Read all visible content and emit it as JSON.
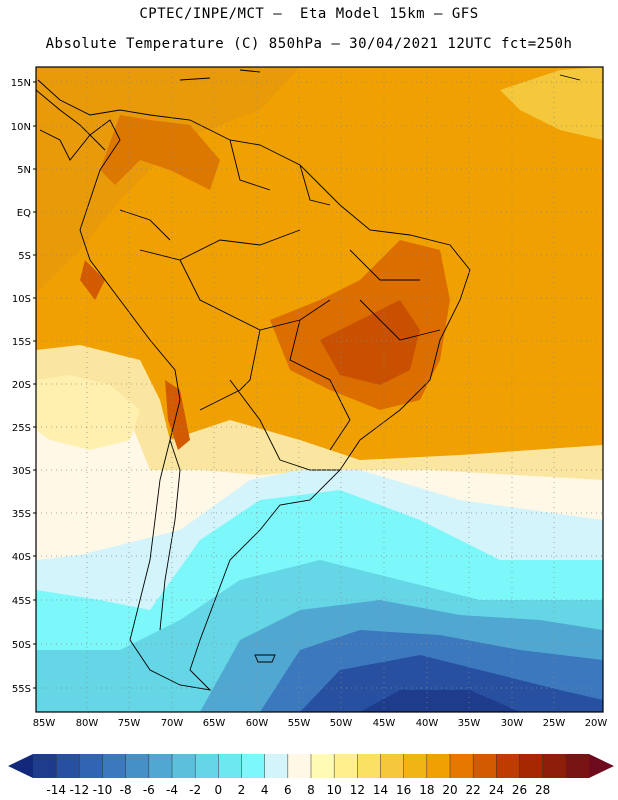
{
  "header": {
    "line1": "CPTEC/INPE/MCT –  Eta Model 15km – GFS",
    "line2": "Absolute Temperature (C) 850hPa – 30/04/2021 12UTC fct=250h"
  },
  "map": {
    "lat_labels": [
      "15N",
      "10N",
      "5N",
      "EQ",
      "5S",
      "10S",
      "15S",
      "20S",
      "25S",
      "30S",
      "35S",
      "40S",
      "45S",
      "50S",
      "55S"
    ],
    "lon_labels": [
      "85W",
      "80W",
      "75W",
      "70W",
      "65W",
      "60W",
      "55W",
      "50W",
      "45W",
      "40W",
      "35W",
      "30W",
      "25W",
      "20W"
    ]
  },
  "colorbar": {
    "ticks": [
      "-14",
      "-12",
      "-10",
      "-8",
      "-6",
      "-4",
      "-2",
      "0",
      "2",
      "4",
      "6",
      "8",
      "10",
      "12",
      "14",
      "16",
      "18",
      "20",
      "22",
      "24",
      "26",
      "28"
    ],
    "colors": [
      "#1f3c8c",
      "#2850a0",
      "#3264b4",
      "#3c78be",
      "#4690c8",
      "#50a8d2",
      "#5ac0dc",
      "#64d6e6",
      "#6ee8f0",
      "#7cf8fa",
      "#d2f4fa",
      "#fff8e6",
      "#fffab4",
      "#fff08c",
      "#fae164",
      "#f5c83c",
      "#f0b414",
      "#f0a000",
      "#e67800",
      "#d25a00",
      "#be3c00",
      "#a52800",
      "#8c1e0a",
      "#781414"
    ],
    "left_arrow_color": "#12287a",
    "right_arrow_color": "#6e0a1e"
  }
}
